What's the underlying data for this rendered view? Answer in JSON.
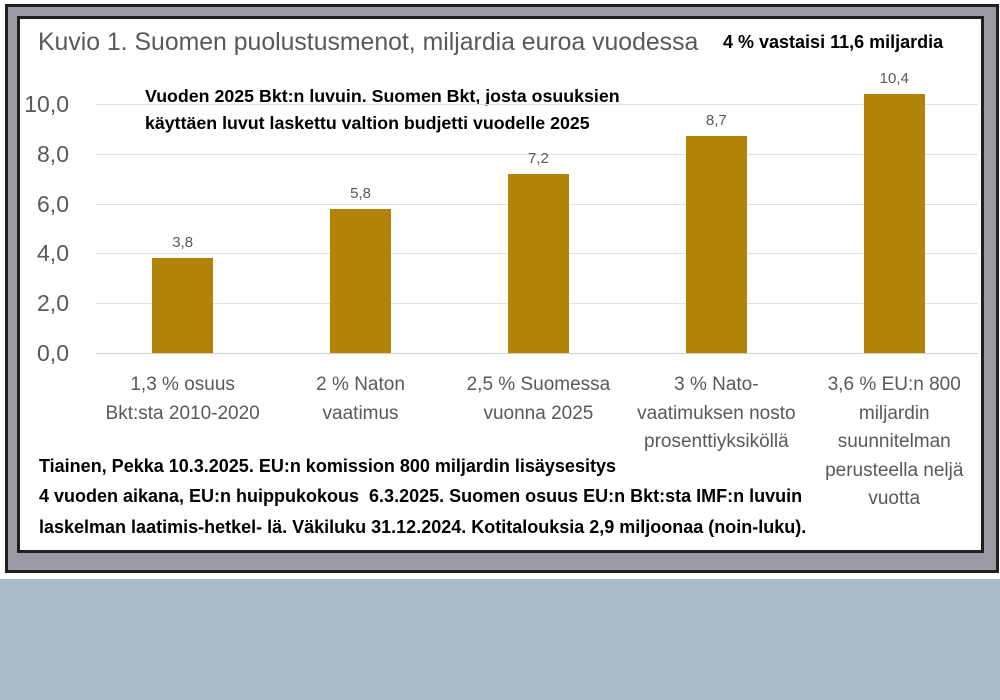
{
  "page": {
    "background_color": "#ffffff",
    "bottom_band_color": "#a9bbc8",
    "frame_matte_color": "#9a9aa2",
    "frame_border_color": "#202020"
  },
  "chart": {
    "title": "Kuvio 1. Suomen puolustusmenot, miljardia euroa vuodessa",
    "note_right": "4 % vastaisi 11,6 miljardia",
    "annotation_lines": [
      "Vuoden 2025 Bkt:n luvuin. Suomen Bkt, josta osuuksien",
      "käyttäen luvut laskettu valtion budjetti vuodelle 2025"
    ],
    "footnote_lines": [
      "Tiainen, Pekka 10.3.2025. EU:n komission 800 miljardin lisäysesitys",
      "4 vuoden aikana, EU:n huippukokous  6.3.2025. Suomen osuus EU:n Bkt:sta IMF:n luvuin",
      "laskelman laatimis-hetkel- lä. Väkiluku 31.12.2024. Kotitalouksia 2,9 miljoonaa (noin-luku)."
    ],
    "category_lines": [
      [
        "1,3 % osuus",
        "Bkt:sta 2010-2020"
      ],
      [
        "2 % Naton",
        "vaatimus"
      ],
      [
        "2,5 % Suomessa",
        "vuonna 2025"
      ],
      [
        "3 % Nato-",
        "vaatimuksen nosto",
        "prosenttiyksiköllä"
      ],
      [
        "3,6 % EU:n 800",
        "miljardin",
        "suunnitelman",
        "perusteella neljä",
        "vuotta"
      ]
    ]
  },
  "chart_data": {
    "type": "bar",
    "title": "Kuvio 1. Suomen puolustusmenot, miljardia euroa vuodessa",
    "categories": [
      "1,3 % osuus Bkt:sta 2010-2020",
      "2 % Naton vaatimus",
      "2,5 % Suomessa vuonna 2025",
      "3 % Nato-vaatimuksen nosto prosenttiyksiköllä",
      "3,6 % EU:n 800 miljardin suunnitelman perusteella neljä vuotta"
    ],
    "values": [
      3.8,
      5.8,
      7.2,
      8.7,
      10.4
    ],
    "value_labels": [
      "3,8",
      "5,8",
      "7,2",
      "8,7",
      "10,4"
    ],
    "xlabel": "",
    "ylabel": "",
    "ylim": [
      0,
      10.4
    ],
    "yticks": [
      0,
      2,
      4,
      6,
      8,
      10
    ],
    "ytick_labels": [
      "0,0",
      "2,0",
      "4,0",
      "6,0",
      "8,0",
      "10,0"
    ],
    "grid": true,
    "legend": false,
    "bar_color": "#b28309",
    "annotations": [
      "Vuoden 2025 Bkt:n luvuin. Suomen Bkt, josta osuuksien käyttäen luvut laskettu valtion budjetti vuodelle 2025",
      "4 % vastaisi 11,6 miljardia",
      "Tiainen, Pekka 10.3.2025. EU:n komission 800 miljardin lisäysesitys 4 vuoden aikana, EU:n huippukokous 6.3.2025. Suomen osuus EU:n Bkt:sta IMF:n luvuin laskelman laatimis-hetkel- lä. Väkiluku 31.12.2024. Kotitalouksia 2,9 miljoonaa (noin-luku)."
    ]
  }
}
